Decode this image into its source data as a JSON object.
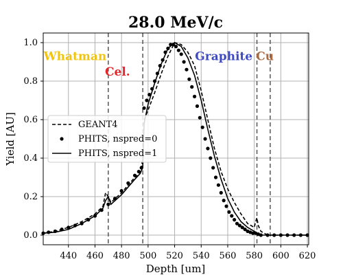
{
  "chart_data": {
    "type": "line",
    "title": "28.0 MeV/c",
    "xlabel": "Depth [um]",
    "ylabel": "Yield [AU]",
    "xlim": [
      421,
      621
    ],
    "ylim": [
      -0.05,
      1.05
    ],
    "xticks": [
      440,
      460,
      480,
      500,
      520,
      540,
      560,
      580,
      600,
      620
    ],
    "yticks": [
      0.0,
      0.2,
      0.4,
      0.6,
      0.8,
      1.0
    ],
    "grid": true,
    "legend_position": "center-left",
    "boundaries": [
      470,
      496,
      582,
      592
    ],
    "regions": [
      {
        "label": "Whatman",
        "color": "#f1c40f",
        "x": 445,
        "y": 0.93
      },
      {
        "label": "Cel.",
        "color": "#e3262b",
        "x": 477,
        "y": 0.85
      },
      {
        "label": "Graphite",
        "color": "#3f4cc0",
        "x": 557,
        "y": 0.93
      },
      {
        "label": "Cu",
        "color": "#a86b45",
        "x": 588,
        "y": 0.93
      }
    ],
    "series": [
      {
        "name": "GEANT4",
        "style": "dashed",
        "color": "#000000",
        "x": [
          421,
          430,
          440,
          450,
          460,
          466,
          468,
          470,
          472,
          480,
          490,
          494,
          496,
          497,
          500,
          505,
          510,
          515,
          520,
          525,
          530,
          535,
          540,
          545,
          550,
          555,
          560,
          565,
          570,
          575,
          580,
          581,
          582,
          583,
          585,
          590,
          600,
          610,
          621
        ],
        "y": [
          0.01,
          0.02,
          0.04,
          0.07,
          0.11,
          0.15,
          0.22,
          0.2,
          0.17,
          0.22,
          0.3,
          0.32,
          0.4,
          0.6,
          0.65,
          0.74,
          0.84,
          0.93,
          1.0,
          0.99,
          0.95,
          0.88,
          0.75,
          0.6,
          0.45,
          0.33,
          0.24,
          0.17,
          0.11,
          0.06,
          0.04,
          0.07,
          0.09,
          0.05,
          0.02,
          0.0,
          0.0,
          0.0,
          0.0
        ]
      },
      {
        "name": "PHITS, nspred=0",
        "style": "dots",
        "color": "#000000",
        "x": [
          421,
          425,
          430,
          435,
          440,
          445,
          450,
          455,
          460,
          465,
          470,
          475,
          480,
          485,
          490,
          493,
          495,
          497,
          499,
          501,
          503,
          505,
          507,
          509,
          511,
          513,
          515,
          517,
          519,
          521,
          523,
          525,
          527,
          529,
          531,
          533,
          535,
          537,
          539,
          541,
          543,
          545,
          547,
          549,
          551,
          553,
          555,
          557,
          559,
          561,
          563,
          565,
          567,
          569,
          571,
          573,
          575,
          577,
          579,
          581,
          583,
          585,
          590,
          595,
          600,
          605,
          610,
          615,
          620
        ],
        "y": [
          0.01,
          0.015,
          0.02,
          0.03,
          0.04,
          0.05,
          0.06,
          0.08,
          0.1,
          0.13,
          0.16,
          0.19,
          0.23,
          0.27,
          0.31,
          0.33,
          0.35,
          0.66,
          0.7,
          0.73,
          0.76,
          0.8,
          0.84,
          0.88,
          0.91,
          0.95,
          0.97,
          0.99,
          0.99,
          0.98,
          0.96,
          0.94,
          0.9,
          0.86,
          0.81,
          0.77,
          0.72,
          0.67,
          0.61,
          0.56,
          0.5,
          0.45,
          0.4,
          0.35,
          0.3,
          0.26,
          0.22,
          0.18,
          0.15,
          0.12,
          0.1,
          0.08,
          0.06,
          0.05,
          0.04,
          0.03,
          0.02,
          0.015,
          0.01,
          0.01,
          0.005,
          0.0,
          0.0,
          0.0,
          0.0,
          0.0,
          0.0,
          0.0,
          0.0
        ]
      },
      {
        "name": "PHITS, nspred=1",
        "style": "solid",
        "color": "#000000",
        "x": [
          421,
          430,
          440,
          450,
          460,
          466,
          468,
          470,
          472,
          480,
          490,
          494,
          496,
          497,
          500,
          505,
          510,
          515,
          520,
          525,
          530,
          535,
          540,
          545,
          550,
          555,
          560,
          565,
          570,
          575,
          580,
          582,
          585,
          590,
          600,
          610,
          621
        ],
        "y": [
          0.01,
          0.015,
          0.03,
          0.06,
          0.1,
          0.14,
          0.18,
          0.2,
          0.16,
          0.21,
          0.29,
          0.32,
          0.35,
          0.58,
          0.68,
          0.79,
          0.89,
          0.97,
          1.0,
          0.98,
          0.92,
          0.83,
          0.7,
          0.55,
          0.41,
          0.29,
          0.19,
          0.12,
          0.07,
          0.04,
          0.02,
          0.01,
          0.0,
          0.0,
          0.0,
          0.0,
          0.0
        ]
      }
    ]
  }
}
